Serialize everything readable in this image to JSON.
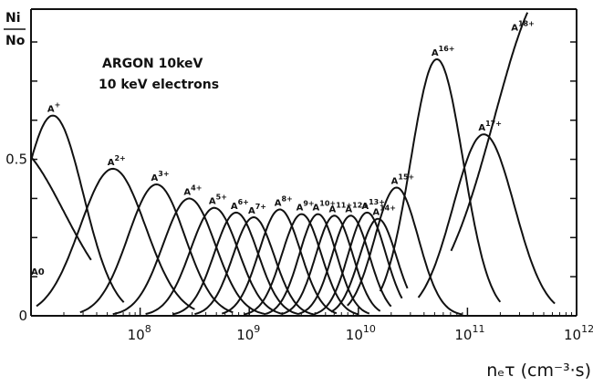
{
  "chart_data": {
    "type": "line",
    "title": "",
    "annotation": [
      "ARGON 10keV",
      "10 keV electrons"
    ],
    "ylabel": {
      "numerator": "Ni",
      "denominator": "No"
    },
    "xlabel": "nₑτ (cm⁻³·s)",
    "xscale": "log",
    "xlim_exp": [
      7.0,
      12.0
    ],
    "ylim": [
      0,
      0.98
    ],
    "x_ticks": [
      {
        "exp": 8,
        "label": "10",
        "sup": "8"
      },
      {
        "exp": 9,
        "label": "10",
        "sup": "9"
      },
      {
        "exp": 10,
        "label": "10",
        "sup": "10"
      },
      {
        "exp": 11,
        "label": "10",
        "sup": "11"
      },
      {
        "exp": 12,
        "label": "10",
        "sup": "12"
      }
    ],
    "y_ticks": [
      {
        "value": 0,
        "label": "0"
      },
      {
        "value": 0.5,
        "label": "0.5"
      }
    ],
    "grid": false,
    "legend": "none (curves labelled directly)",
    "series": [
      {
        "name": "A0",
        "peak_log10_x": 6.8,
        "peak_y": 0.55,
        "width": 0.5,
        "x_range": [
          7.0,
          7.55
        ]
      },
      {
        "name": "A+",
        "peak_log10_x": 7.2,
        "peak_y": 0.64,
        "width": 0.28,
        "x_range": [
          7.0,
          7.85
        ]
      },
      {
        "name": "A2+",
        "peak_log10_x": 7.75,
        "peak_y": 0.47,
        "width": 0.3,
        "x_range": [
          7.05,
          8.5
        ]
      },
      {
        "name": "A3+",
        "peak_log10_x": 8.15,
        "peak_y": 0.42,
        "width": 0.26,
        "x_range": [
          7.45,
          8.85
        ]
      },
      {
        "name": "A4+",
        "peak_log10_x": 8.45,
        "peak_y": 0.375,
        "width": 0.24,
        "x_range": [
          7.75,
          9.15
        ]
      },
      {
        "name": "A5+",
        "peak_log10_x": 8.68,
        "peak_y": 0.345,
        "width": 0.22,
        "x_range": [
          8.05,
          9.3
        ]
      },
      {
        "name": "A6+",
        "peak_log10_x": 8.88,
        "peak_y": 0.33,
        "width": 0.2,
        "x_range": [
          8.3,
          9.45
        ]
      },
      {
        "name": "A7+",
        "peak_log10_x": 9.04,
        "peak_y": 0.315,
        "width": 0.19,
        "x_range": [
          8.5,
          9.6
        ]
      },
      {
        "name": "A8+",
        "peak_log10_x": 9.28,
        "peak_y": 0.34,
        "width": 0.19,
        "x_range": [
          8.75,
          9.8
        ]
      },
      {
        "name": "A9+",
        "peak_log10_x": 9.48,
        "peak_y": 0.325,
        "width": 0.18,
        "x_range": [
          8.95,
          10.0
        ]
      },
      {
        "name": "A10+",
        "peak_log10_x": 9.63,
        "peak_y": 0.325,
        "width": 0.17,
        "x_range": [
          9.15,
          10.1
        ]
      },
      {
        "name": "A11+",
        "peak_log10_x": 9.78,
        "peak_y": 0.32,
        "width": 0.17,
        "x_range": [
          9.3,
          10.2
        ]
      },
      {
        "name": "A12+",
        "peak_log10_x": 9.93,
        "peak_y": 0.32,
        "width": 0.17,
        "x_range": [
          9.45,
          10.3
        ]
      },
      {
        "name": "A13+",
        "peak_log10_x": 10.08,
        "peak_y": 0.33,
        "width": 0.17,
        "x_range": [
          9.6,
          10.4
        ]
      },
      {
        "name": "A14+",
        "peak_log10_x": 10.18,
        "peak_y": 0.31,
        "width": 0.17,
        "x_range": [
          9.75,
          10.45
        ]
      },
      {
        "name": "A15+",
        "peak_log10_x": 10.35,
        "peak_y": 0.41,
        "width": 0.2,
        "x_range": [
          9.9,
          10.95
        ]
      },
      {
        "name": "A16+",
        "peak_log10_x": 10.72,
        "peak_y": 0.82,
        "width": 0.24,
        "x_range": [
          10.2,
          11.3
        ]
      },
      {
        "name": "A17+",
        "peak_log10_x": 11.15,
        "peak_y": 0.58,
        "width": 0.28,
        "x_range": [
          10.55,
          11.8
        ]
      },
      {
        "name": "A18+",
        "peak_log10_x": 11.75,
        "peak_y": 1.05,
        "width": 0.5,
        "x_range": [
          10.85,
          11.55
        ]
      }
    ]
  }
}
